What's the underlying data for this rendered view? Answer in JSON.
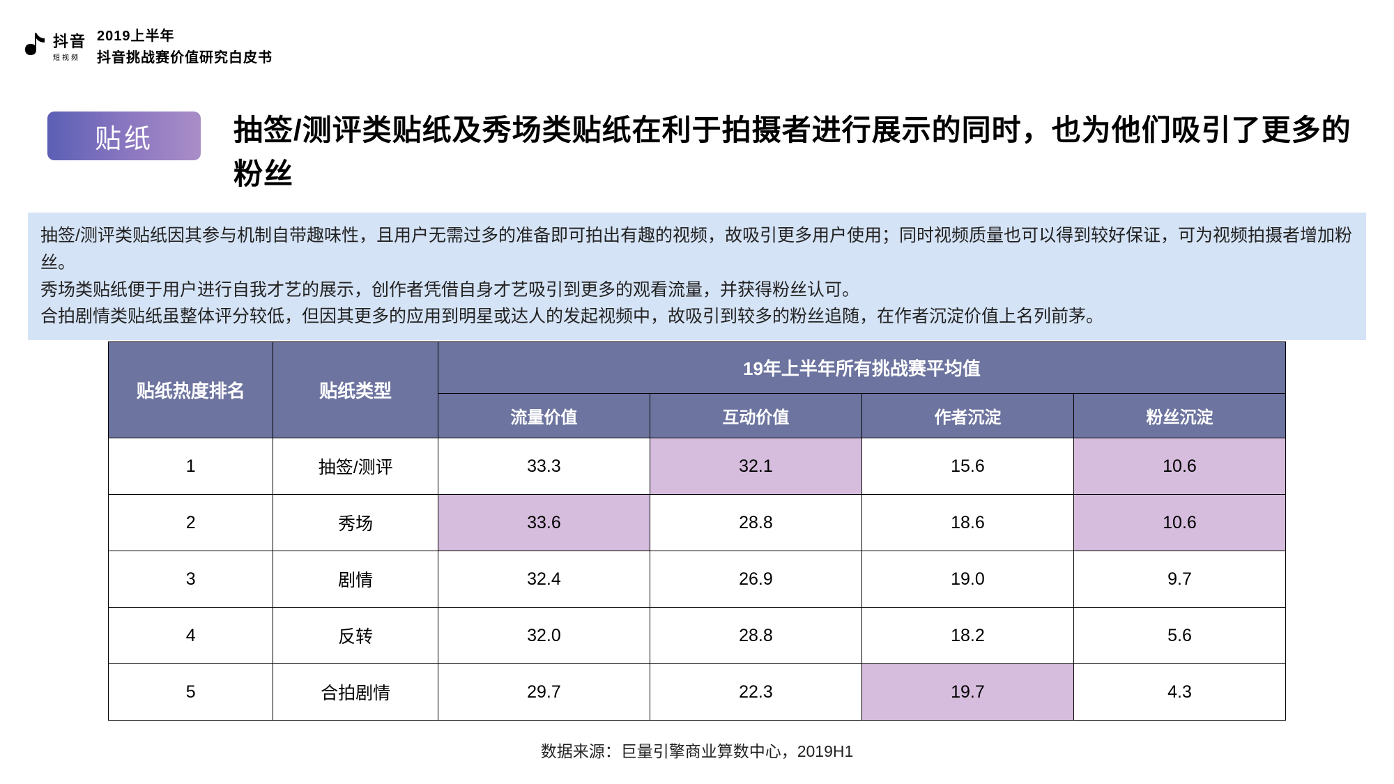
{
  "brand": {
    "logo_main": "抖音",
    "logo_sub": "短视频",
    "title_line1": "2019上半年",
    "title_line2": "抖音挑战赛价值研究白皮书"
  },
  "badge": "贴纸",
  "headline": "抽签/测评类贴纸及秀场类贴纸在利于拍摄者进行展示的同时，也为他们吸引了更多的粉丝",
  "description": {
    "p1": "抽签/测评类贴纸因其参与机制自带趣味性，且用户无需过多的准备即可拍出有趣的视频，故吸引更多用户使用；同时视频质量也可以得到较好保证，可为视频拍摄者增加粉丝。",
    "p2": "秀场类贴纸便于用户进行自我才艺的展示，创作者凭借自身才艺吸引到更多的观看流量，并获得粉丝认可。",
    "p3": "合拍剧情类贴纸虽整体评分较低，但因其更多的应用到明星或达人的发起视频中，故吸引到较多的粉丝追随，在作者沉淀价值上名列前茅。"
  },
  "table": {
    "col_rank": "贴纸热度排名",
    "col_type": "贴纸类型",
    "col_group": "19年上半年所有挑战赛平均值",
    "sub_flow": "流量价值",
    "sub_interact": "互动价值",
    "sub_author": "作者沉淀",
    "sub_fans": "粉丝沉淀",
    "highlight_color": "#d6bcdd",
    "header_bg": "#6d749f",
    "rows": [
      {
        "rank": "1",
        "type": "抽签/测评",
        "flow": "33.3",
        "interact": "32.1",
        "author": "15.6",
        "fans": "10.6",
        "hl_flow": false,
        "hl_interact": true,
        "hl_author": false,
        "hl_fans": true
      },
      {
        "rank": "2",
        "type": "秀场",
        "flow": "33.6",
        "interact": "28.8",
        "author": "18.6",
        "fans": "10.6",
        "hl_flow": true,
        "hl_interact": false,
        "hl_author": false,
        "hl_fans": true
      },
      {
        "rank": "3",
        "type": "剧情",
        "flow": "32.4",
        "interact": "26.9",
        "author": "19.0",
        "fans": "9.7",
        "hl_flow": false,
        "hl_interact": false,
        "hl_author": false,
        "hl_fans": false
      },
      {
        "rank": "4",
        "type": "反转",
        "flow": "32.0",
        "interact": "28.8",
        "author": "18.2",
        "fans": "5.6",
        "hl_flow": false,
        "hl_interact": false,
        "hl_author": false,
        "hl_fans": false
      },
      {
        "rank": "5",
        "type": "合拍剧情",
        "flow": "29.7",
        "interact": "22.3",
        "author": "19.7",
        "fans": "4.3",
        "hl_flow": false,
        "hl_interact": false,
        "hl_author": true,
        "hl_fans": false
      }
    ]
  },
  "source": "数据来源：巨量引擎商业算数中心，2019H1"
}
